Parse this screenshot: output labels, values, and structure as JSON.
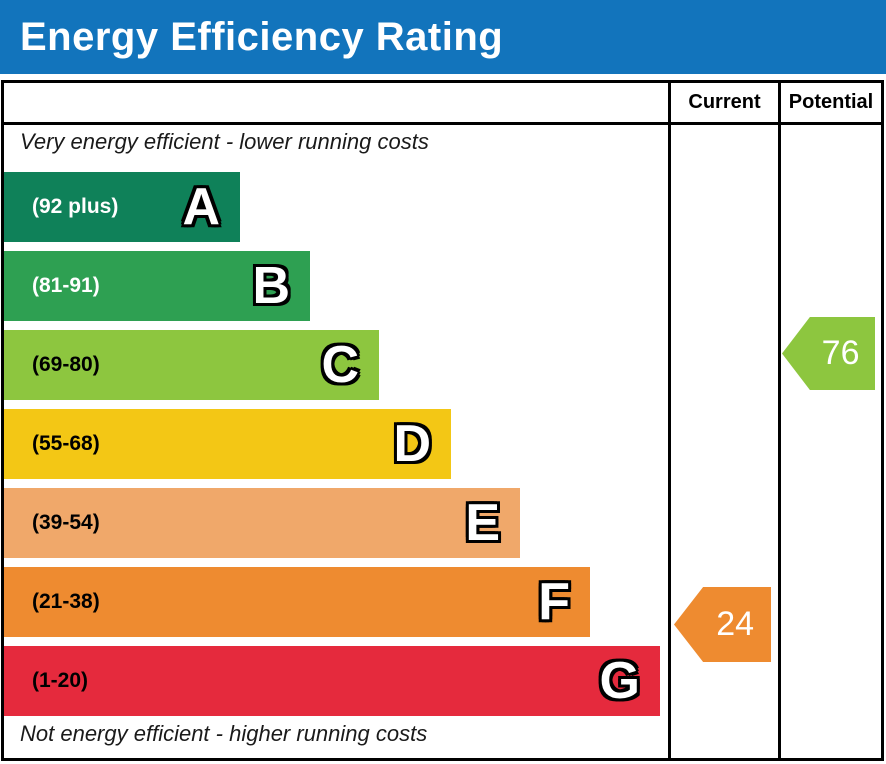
{
  "header": {
    "title": "Energy Efficiency Rating",
    "background_color": "#1274bc"
  },
  "table": {
    "columns": [
      {
        "label": "Current"
      },
      {
        "label": "Potential"
      }
    ],
    "top_note": "Very energy efficient - lower running costs",
    "bottom_note": "Not energy efficient - higher running costs"
  },
  "bands": [
    {
      "letter": "A",
      "range": "(92 plus)",
      "color": "#0f8159",
      "label_color": "#ffffff"
    },
    {
      "letter": "B",
      "range": "(81-91)",
      "color": "#2ea052",
      "label_color": "#ffffff"
    },
    {
      "letter": "C",
      "range": "(69-80)",
      "color": "#8dc63f",
      "label_color": "#000000"
    },
    {
      "letter": "D",
      "range": "(55-68)",
      "color": "#f3c715",
      "label_color": "#000000"
    },
    {
      "letter": "E",
      "range": "(39-54)",
      "color": "#f0a86a",
      "label_color": "#000000"
    },
    {
      "letter": "F",
      "range": "(21-38)",
      "color": "#ee8b30",
      "label_color": "#000000"
    },
    {
      "letter": "G",
      "range": "(1-20)",
      "color": "#e52a3d",
      "label_color": "#000000"
    }
  ],
  "ratings": {
    "current": {
      "value": "24",
      "band": "F",
      "color": "#ee8b30"
    },
    "potential": {
      "value": "76",
      "band": "C",
      "color": "#8dc63f"
    }
  },
  "chart_data": {
    "type": "bar",
    "title": "Energy Efficiency Rating",
    "categories": [
      "A",
      "B",
      "C",
      "D",
      "E",
      "F",
      "G"
    ],
    "band_score_ranges": [
      "92 plus",
      "81-91",
      "69-80",
      "55-68",
      "39-54",
      "21-38",
      "1-20"
    ],
    "band_colors": [
      "#0f8159",
      "#2ea052",
      "#8dc63f",
      "#f3c715",
      "#f0a86a",
      "#ee8b30",
      "#e52a3d"
    ],
    "bar_relative_widths": [
      236,
      306,
      375,
      447,
      516,
      586,
      656
    ],
    "markers": [
      {
        "name": "Current",
        "value": 24,
        "band": "F",
        "color": "#ee8b30"
      },
      {
        "name": "Potential",
        "value": 76,
        "band": "C",
        "color": "#8dc63f"
      }
    ],
    "annotations": [
      "Very energy efficient - lower running costs",
      "Not energy efficient - higher running costs"
    ],
    "legend_position": "none",
    "grid": false
  }
}
